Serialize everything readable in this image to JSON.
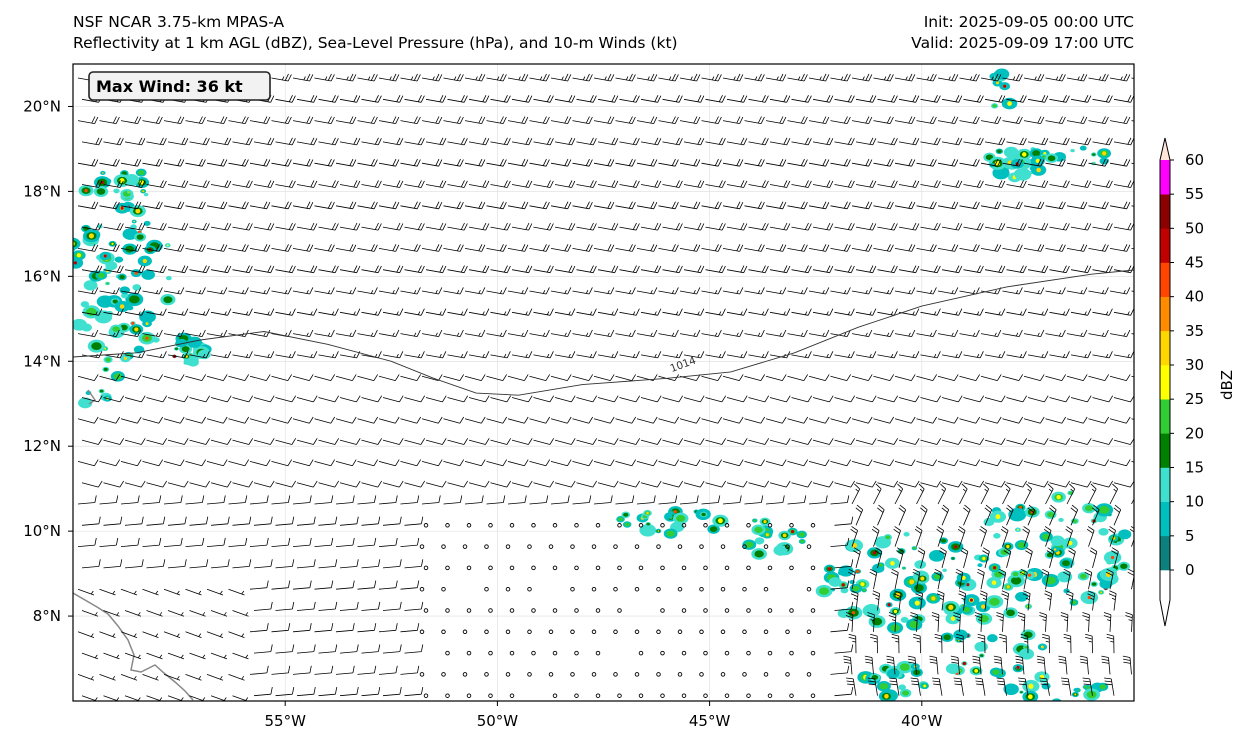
{
  "header": {
    "model_line": "NSF NCAR 3.75-km MPAS-A",
    "fields_line": "Reflectivity at 1 km AGL (dBZ), Sea-Level Pressure (hPa), and 10-m Winds (kt)",
    "init_line": "Init: 2025-09-05 00:00 UTC",
    "valid_line": "Valid: 2025-09-09 17:00 UTC"
  },
  "annotation": {
    "max_wind": "Max Wind: 36 kt"
  },
  "map": {
    "lon_range": [
      -60,
      -35
    ],
    "lat_range": [
      6,
      21
    ],
    "lon_ticks": [
      {
        "value": -55,
        "label": "55°W"
      },
      {
        "value": -50,
        "label": "50°W"
      },
      {
        "value": -45,
        "label": "45°W"
      },
      {
        "value": -40,
        "label": "40°W"
      }
    ],
    "lat_ticks": [
      {
        "value": 8,
        "label": "8°N"
      },
      {
        "value": 10,
        "label": "10°N"
      },
      {
        "value": 12,
        "label": "12°N"
      },
      {
        "value": 14,
        "label": "14°N"
      },
      {
        "value": 16,
        "label": "16°N"
      },
      {
        "value": 18,
        "label": "18°N"
      },
      {
        "value": 20,
        "label": "20°N"
      }
    ],
    "gridlines": true,
    "isobar": {
      "label": "1014",
      "points": [
        [
          -60,
          14.1
        ],
        [
          -58.5,
          14.2
        ],
        [
          -57,
          14.5
        ],
        [
          -55.5,
          14.7
        ],
        [
          -54,
          14.4
        ],
        [
          -52.5,
          14.0
        ],
        [
          -51.5,
          13.6
        ],
        [
          -50.5,
          13.25
        ],
        [
          -49.5,
          13.2
        ],
        [
          -48,
          13.45
        ],
        [
          -46,
          13.6
        ],
        [
          -44.5,
          13.75
        ],
        [
          -43,
          14.2
        ],
        [
          -41.5,
          14.8
        ],
        [
          -40,
          15.3
        ],
        [
          -38,
          15.75
        ],
        [
          -36,
          16.05
        ],
        [
          -35,
          16.15
        ]
      ]
    }
  },
  "colorbar": {
    "label": "dBZ",
    "ticks": [
      0,
      5,
      10,
      15,
      20,
      25,
      30,
      35,
      40,
      45,
      50,
      55,
      60
    ],
    "colors": [
      "#0c7f7f",
      "#00bfbf",
      "#40e0d0",
      "#008000",
      "#32cd32",
      "#ffff00",
      "#ffd700",
      "#ff8c00",
      "#ff4500",
      "#c00000",
      "#8b0000",
      "#ff00ff",
      "#ffe4d9"
    ]
  }
}
